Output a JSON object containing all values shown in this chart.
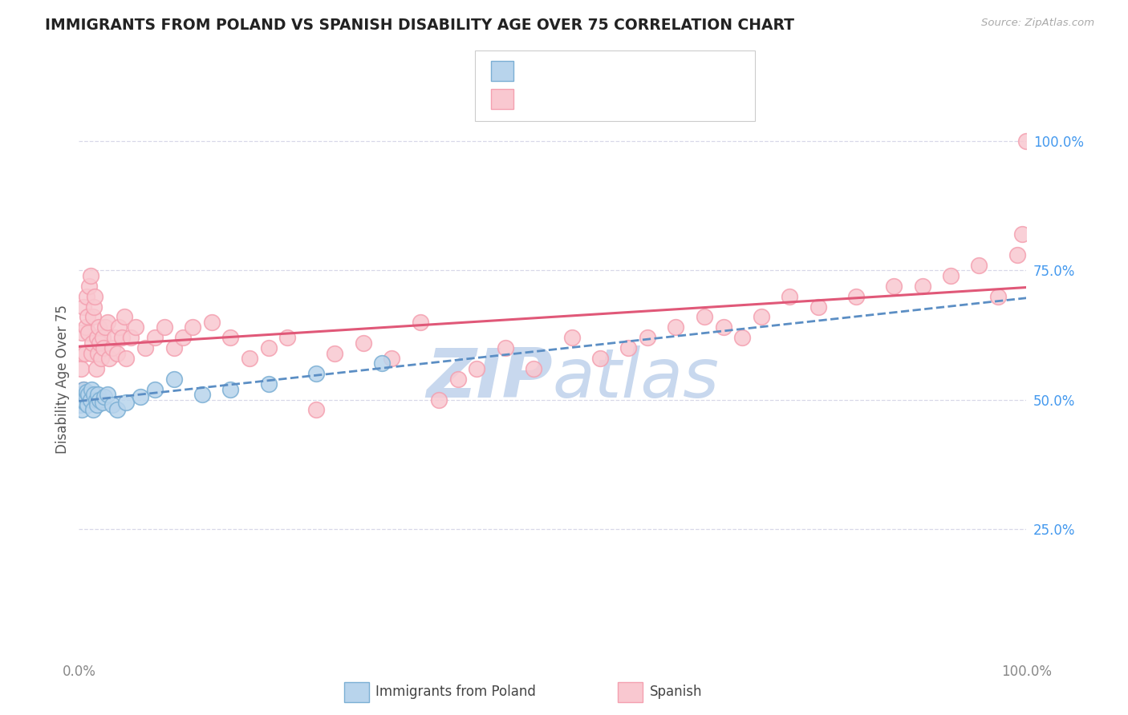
{
  "title": "IMMIGRANTS FROM POLAND VS SPANISH DISABILITY AGE OVER 75 CORRELATION CHART",
  "source": "Source: ZipAtlas.com",
  "ylabel": "Disability Age Over 75",
  "xlabel_label": "Immigrants from Poland",
  "xlabel_label2": "Spanish",
  "y_tick_right_labels": [
    "100.0%",
    "75.0%",
    "50.0%",
    "25.0%"
  ],
  "y_tick_right_values": [
    1.0,
    0.75,
    0.5,
    0.25
  ],
  "blue_color": "#7BAFD4",
  "pink_color": "#F4A0B0",
  "blue_fill": "#B8D4EC",
  "pink_fill": "#F9C8D0",
  "trend_blue_color": "#5B8EC4",
  "trend_pink_color": "#E05878",
  "text_blue": "#4499EE",
  "text_dark": "#333344",
  "background_color": "#FFFFFF",
  "grid_color": "#D8D8E8",
  "watermark_color": "#C8D8EE",
  "blue_x": [
    0.001,
    0.002,
    0.003,
    0.004,
    0.005,
    0.006,
    0.007,
    0.008,
    0.009,
    0.01,
    0.012,
    0.013,
    0.015,
    0.016,
    0.018,
    0.019,
    0.02,
    0.022,
    0.025,
    0.027,
    0.03,
    0.035,
    0.04,
    0.05,
    0.065,
    0.08,
    0.1,
    0.13,
    0.16,
    0.2,
    0.25,
    0.32
  ],
  "blue_y": [
    0.49,
    0.51,
    0.48,
    0.5,
    0.52,
    0.495,
    0.505,
    0.515,
    0.49,
    0.51,
    0.5,
    0.52,
    0.48,
    0.51,
    0.5,
    0.49,
    0.51,
    0.5,
    0.495,
    0.505,
    0.51,
    0.49,
    0.48,
    0.495,
    0.505,
    0.52,
    0.54,
    0.51,
    0.52,
    0.53,
    0.55,
    0.57
  ],
  "pink_x": [
    0.001,
    0.002,
    0.003,
    0.004,
    0.005,
    0.005,
    0.006,
    0.007,
    0.008,
    0.009,
    0.01,
    0.011,
    0.012,
    0.013,
    0.014,
    0.015,
    0.016,
    0.017,
    0.018,
    0.019,
    0.02,
    0.021,
    0.022,
    0.023,
    0.025,
    0.026,
    0.028,
    0.03,
    0.032,
    0.035,
    0.038,
    0.04,
    0.042,
    0.045,
    0.048,
    0.05,
    0.055,
    0.06,
    0.07,
    0.08,
    0.09,
    0.1,
    0.11,
    0.12,
    0.14,
    0.16,
    0.18,
    0.2,
    0.22,
    0.25,
    0.27,
    0.3,
    0.33,
    0.36,
    0.38,
    0.4,
    0.42,
    0.45,
    0.48,
    0.52,
    0.55,
    0.58,
    0.6,
    0.63,
    0.66,
    0.68,
    0.7,
    0.72,
    0.75,
    0.78,
    0.82,
    0.86,
    0.89,
    0.92,
    0.95,
    0.97,
    0.99,
    0.995,
    1.0
  ],
  "pink_y": [
    0.51,
    0.56,
    0.63,
    0.59,
    0.68,
    0.52,
    0.59,
    0.64,
    0.7,
    0.66,
    0.63,
    0.72,
    0.74,
    0.59,
    0.61,
    0.66,
    0.68,
    0.7,
    0.56,
    0.62,
    0.59,
    0.64,
    0.61,
    0.58,
    0.62,
    0.6,
    0.64,
    0.65,
    0.58,
    0.6,
    0.62,
    0.59,
    0.64,
    0.62,
    0.66,
    0.58,
    0.62,
    0.64,
    0.6,
    0.62,
    0.64,
    0.6,
    0.62,
    0.64,
    0.65,
    0.62,
    0.58,
    0.6,
    0.62,
    0.48,
    0.59,
    0.61,
    0.58,
    0.65,
    0.5,
    0.54,
    0.56,
    0.6,
    0.56,
    0.62,
    0.58,
    0.6,
    0.62,
    0.64,
    0.66,
    0.64,
    0.62,
    0.66,
    0.7,
    0.68,
    0.7,
    0.72,
    0.72,
    0.74,
    0.76,
    0.7,
    0.78,
    0.82,
    1.0
  ]
}
